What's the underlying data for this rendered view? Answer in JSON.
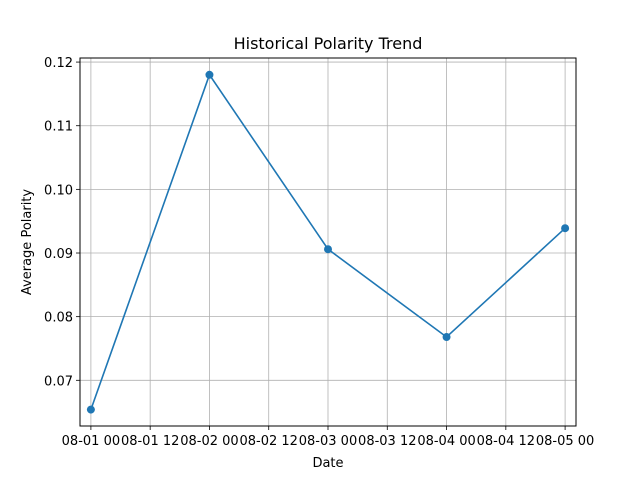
{
  "chart_data": {
    "type": "line",
    "title": "Historical Polarity Trend",
    "xlabel": "Date",
    "ylabel": "Average Polarity",
    "x": [
      "2024-08-01",
      "2024-08-02",
      "2024-08-03",
      "2024-08-04",
      "2024-08-05"
    ],
    "series": [
      {
        "values": [
          0.0654,
          0.118,
          0.0906,
          0.0768,
          0.0939
        ]
      }
    ],
    "x_ticks": [
      "08-01 00",
      "08-01 12",
      "08-02 00",
      "08-02 12",
      "08-03 00",
      "08-03 12",
      "08-04 00",
      "08-04 12",
      "08-05 00"
    ],
    "y_ticks": [
      "0.07",
      "0.08",
      "0.09",
      "0.10",
      "0.11",
      "0.12"
    ],
    "grid": true,
    "colors": {
      "line": "#1f77b4",
      "grid": "#b0b0b0"
    }
  }
}
